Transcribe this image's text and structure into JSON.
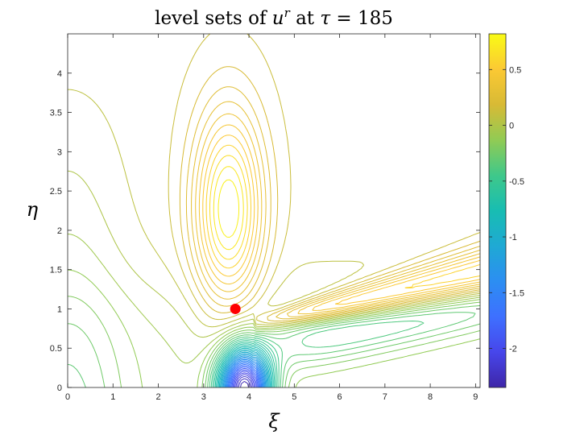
{
  "chart_data": {
    "type": "contour",
    "title": {
      "prefix": "level sets of ",
      "var": "u",
      "superscript": "r",
      "mid": " at ",
      "param": "τ",
      "eq": " = 185"
    },
    "xlabel": "ξ",
    "ylabel": "η",
    "xlim": [
      0,
      9.1
    ],
    "ylim": [
      0,
      4.5
    ],
    "xticks": [
      0,
      1,
      2,
      3,
      4,
      5,
      6,
      7,
      8,
      9
    ],
    "yticks": [
      0,
      0.5,
      1,
      1.5,
      2,
      2.5,
      3,
      3.5,
      4
    ],
    "marker": {
      "x": 3.7,
      "y": 1.0,
      "color": "#ff0000"
    },
    "colorbar": {
      "limits": [
        -2.35,
        0.82
      ],
      "ticks": [
        0.5,
        0,
        -0.5,
        -1,
        -1.5,
        -2
      ],
      "colormap": "parula"
    },
    "features": {
      "maximum": {
        "x": 3.55,
        "y": 2.25,
        "value": 0.8
      },
      "minimum": {
        "x": 3.9,
        "y": 0.0,
        "value": -2.35
      },
      "ridge": {
        "from": [
          4.6,
          0.88
        ],
        "to": [
          8.9,
          1.4
        ],
        "value": 0.75
      }
    },
    "levels": 50,
    "grid": false
  }
}
